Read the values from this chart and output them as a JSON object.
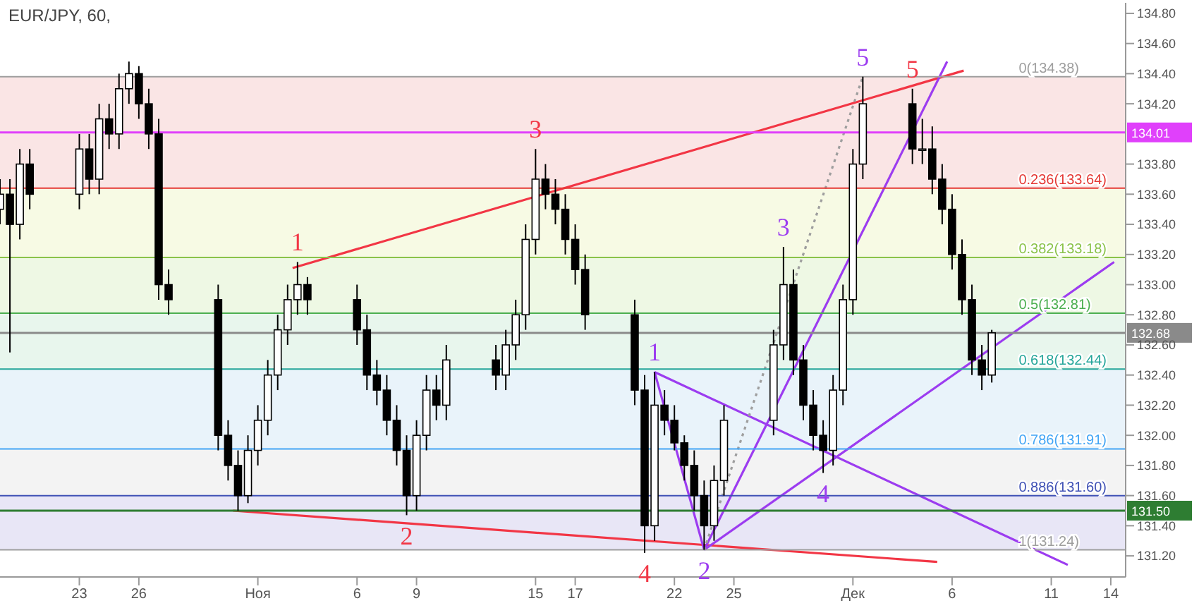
{
  "chart_data": {
    "type": "candlestick",
    "title": "EUR/JPY, 60,",
    "x": [
      "--10-19",
      "--10-19T12:00",
      "--10-20",
      "--10-20T12:00",
      "--10-23",
      "--10-23T12:00",
      "--10-24",
      "--10-24T12:00",
      "--10-25",
      "--10-25T12:00",
      "--10-26",
      "--10-26T12:00",
      "--10-27",
      "--10-27T12:00",
      "--10-30",
      "--10-30T12:00",
      "--10-31",
      "--10-31T12:00",
      "--11-01",
      "--11-01T12:00",
      "--11-02",
      "--11-02T12:00",
      "--11-03",
      "--11-03T12:00",
      "--11-06",
      "--11-06T12:00",
      "--11-07",
      "--11-07T12:00",
      "--11-08",
      "--11-08T12:00",
      "--11-09",
      "--11-09T12:00",
      "--11-10",
      "--11-10T12:00",
      "--11-13",
      "--11-13T12:00",
      "--11-14",
      "--11-14T12:00",
      "--11-15",
      "--11-15T12:00",
      "--11-16",
      "--11-16T12:00",
      "--11-17",
      "--11-17T12:00",
      "--11-20",
      "--11-20T12:00",
      "--11-21",
      "--11-21T12:00",
      "--11-22",
      "--11-22T12:00",
      "--11-23",
      "--11-23T12:00",
      "--11-24",
      "--11-24T12:00",
      "--11-27",
      "--11-27T12:00",
      "--11-28",
      "--11-28T12:00",
      "--11-29",
      "--11-29T12:00",
      "--11-30",
      "--11-30T12:00",
      "--12-01",
      "--12-01T12:00",
      "--12-04",
      "--12-04T12:00",
      "--12-05",
      "--12-05T12:00",
      "--12-06",
      "--12-06T12:00",
      "--12-07",
      "--12-07T12:00",
      "--12-08"
    ],
    "ohlc": [
      [
        133.5,
        133.7,
        133.4,
        133.6
      ],
      [
        133.6,
        133.7,
        132.55,
        133.4
      ],
      [
        133.4,
        133.9,
        133.3,
        133.8
      ],
      [
        133.8,
        133.9,
        133.5,
        133.6
      ],
      [
        133.6,
        134.0,
        133.5,
        133.9
      ],
      [
        133.9,
        134.0,
        133.6,
        133.7
      ],
      [
        133.7,
        134.2,
        133.6,
        134.1
      ],
      [
        134.1,
        134.2,
        133.9,
        134.0
      ],
      [
        134.0,
        134.4,
        133.9,
        134.3
      ],
      [
        134.3,
        134.48,
        134.2,
        134.4
      ],
      [
        134.4,
        134.45,
        134.1,
        134.2
      ],
      [
        134.2,
        134.3,
        133.9,
        134.0
      ],
      [
        134.0,
        134.1,
        132.9,
        133.0
      ],
      [
        133.0,
        133.1,
        132.8,
        132.9
      ],
      [
        132.9,
        133.0,
        131.9,
        132.0
      ],
      [
        132.0,
        132.1,
        131.7,
        131.8
      ],
      [
        131.8,
        131.9,
        131.5,
        131.6
      ],
      [
        131.6,
        132.0,
        131.55,
        131.9
      ],
      [
        131.9,
        132.2,
        131.8,
        132.1
      ],
      [
        132.1,
        132.5,
        132.0,
        132.4
      ],
      [
        132.4,
        132.8,
        132.3,
        132.7
      ],
      [
        132.7,
        133.0,
        132.6,
        132.9
      ],
      [
        132.9,
        133.15,
        132.8,
        133.0
      ],
      [
        133.0,
        133.05,
        132.8,
        132.9
      ],
      [
        132.9,
        133.0,
        132.6,
        132.7
      ],
      [
        132.7,
        132.8,
        132.3,
        132.4
      ],
      [
        132.4,
        132.5,
        132.2,
        132.3
      ],
      [
        132.3,
        132.4,
        132.0,
        132.1
      ],
      [
        132.1,
        132.2,
        131.8,
        131.9
      ],
      [
        131.9,
        132.0,
        131.47,
        131.6
      ],
      [
        131.6,
        132.1,
        131.5,
        132.0
      ],
      [
        132.0,
        132.4,
        131.9,
        132.3
      ],
      [
        132.3,
        132.4,
        132.1,
        132.2
      ],
      [
        132.2,
        132.6,
        132.1,
        132.5
      ],
      [
        132.5,
        132.6,
        132.3,
        132.4
      ],
      [
        132.4,
        132.7,
        132.3,
        132.6
      ],
      [
        132.6,
        132.9,
        132.5,
        132.8
      ],
      [
        132.8,
        133.4,
        132.7,
        133.3
      ],
      [
        133.3,
        133.9,
        133.2,
        133.7
      ],
      [
        133.7,
        133.8,
        133.5,
        133.6
      ],
      [
        133.6,
        133.7,
        133.4,
        133.5
      ],
      [
        133.5,
        133.6,
        133.2,
        133.3
      ],
      [
        133.3,
        133.4,
        133.0,
        133.1
      ],
      [
        133.1,
        133.2,
        132.7,
        132.8
      ],
      [
        132.8,
        132.9,
        132.2,
        132.3
      ],
      [
        132.3,
        132.4,
        131.22,
        131.4
      ],
      [
        131.4,
        132.42,
        131.3,
        132.2
      ],
      [
        132.2,
        132.3,
        132.0,
        132.1
      ],
      [
        132.1,
        132.2,
        131.9,
        131.95
      ],
      [
        131.95,
        132.0,
        131.7,
        131.8
      ],
      [
        131.8,
        131.9,
        131.5,
        131.6
      ],
      [
        131.6,
        131.7,
        131.24,
        131.4
      ],
      [
        131.4,
        131.8,
        131.3,
        131.7
      ],
      [
        131.7,
        132.2,
        131.6,
        132.1
      ],
      [
        132.1,
        132.7,
        132.0,
        132.6
      ],
      [
        132.6,
        133.25,
        132.5,
        133.0
      ],
      [
        133.0,
        133.1,
        132.4,
        132.5
      ],
      [
        132.5,
        132.6,
        132.1,
        132.2
      ],
      [
        132.2,
        132.3,
        131.9,
        132.0
      ],
      [
        132.0,
        132.1,
        131.75,
        131.9
      ],
      [
        131.9,
        132.4,
        131.8,
        132.3
      ],
      [
        132.3,
        133.0,
        132.2,
        132.9
      ],
      [
        132.9,
        133.9,
        132.8,
        133.8
      ],
      [
        133.8,
        134.38,
        133.7,
        134.2
      ],
      [
        134.2,
        134.3,
        133.8,
        133.9
      ],
      [
        133.9,
        134.1,
        133.8,
        133.9
      ],
      [
        133.9,
        134.05,
        133.6,
        133.7
      ],
      [
        133.7,
        133.8,
        133.4,
        133.5
      ],
      [
        133.5,
        133.6,
        133.1,
        133.2
      ],
      [
        133.2,
        133.3,
        132.8,
        132.9
      ],
      [
        132.9,
        133.0,
        132.4,
        132.5
      ],
      [
        132.5,
        132.6,
        132.3,
        132.4
      ],
      [
        132.4,
        132.7,
        132.35,
        132.68
      ]
    ],
    "series": [
      {
        "type": "line",
        "color": "#f23645",
        "x": [
          "--11-02T18:00",
          "--12-06T14:00"
        ],
        "values": [
          133.11,
          134.42
        ]
      },
      {
        "type": "line",
        "color": "#f23645",
        "x": [
          "--10-30T18:00",
          "--12-05T06:00"
        ],
        "values": [
          131.5,
          131.16
        ]
      },
      {
        "type": "line",
        "color": "#9c3cf0",
        "x": [
          "--11-23T12:00",
          "--12-05T18:00"
        ],
        "values": [
          131.24,
          134.48
        ]
      },
      {
        "type": "line",
        "color": "#9c3cf0",
        "x": [
          "--11-23T12:00",
          "--12-14T04:00"
        ],
        "values": [
          131.24,
          133.15
        ]
      },
      {
        "type": "line",
        "color": "#9c3cf0",
        "x": [
          "--11-21",
          "--11-23T12:00"
        ],
        "values": [
          132.42,
          131.24
        ]
      },
      {
        "type": "line",
        "color": "#9c3cf0",
        "x": [
          "--11-21",
          "--12-11T20:00"
        ],
        "values": [
          132.42,
          131.14
        ]
      },
      {
        "type": "line",
        "color": "#9e9e9e",
        "line_style": "dotted",
        "x": [
          "--11-23T12:00",
          "--12-01T12:00"
        ],
        "values": [
          131.24,
          134.38
        ]
      }
    ],
    "xlim": [
      "--10-19",
      "--12-14T18:00"
    ],
    "xticks": [
      {
        "value": "--10-23",
        "label": "23"
      },
      {
        "value": "--10-26",
        "label": "26"
      },
      {
        "value": "--11-01",
        "label": "Ноя"
      },
      {
        "value": "--11-06",
        "label": "6"
      },
      {
        "value": "--11-09",
        "label": "9"
      },
      {
        "value": "--11-15",
        "label": "15"
      },
      {
        "value": "--11-17",
        "label": "17"
      },
      {
        "value": "--11-22",
        "label": "22"
      },
      {
        "value": "--11-25",
        "label": "25"
      },
      {
        "value": "--12-01",
        "label": "Дек"
      },
      {
        "value": "--12-06",
        "label": "6"
      },
      {
        "value": "--12-11",
        "label": "11"
      },
      {
        "value": "--12-14",
        "label": "14"
      }
    ],
    "ylim": [
      131.06,
      134.87
    ],
    "yticks": [
      {
        "value": 131.2,
        "label": "131.20"
      },
      {
        "value": 131.4,
        "label": "131.40"
      },
      {
        "value": 131.6,
        "label": "131.60"
      },
      {
        "value": 131.8,
        "label": "131.80"
      },
      {
        "value": 132.0,
        "label": "132.00"
      },
      {
        "value": 132.2,
        "label": "132.20"
      },
      {
        "value": 132.4,
        "label": "132.40"
      },
      {
        "value": 132.6,
        "label": "132.60"
      },
      {
        "value": 132.8,
        "label": "132.80"
      },
      {
        "value": 133.0,
        "label": "133.00"
      },
      {
        "value": 133.2,
        "label": "133.20"
      },
      {
        "value": 133.4,
        "label": "133.40"
      },
      {
        "value": 133.6,
        "label": "133.60"
      },
      {
        "value": 133.8,
        "label": "133.80"
      },
      {
        "value": 134.2,
        "label": "134.20"
      },
      {
        "value": 134.4,
        "label": "134.40"
      },
      {
        "value": 134.6,
        "label": "134.60"
      },
      {
        "value": 134.8,
        "label": "134.80"
      }
    ],
    "bands": [
      {
        "axis": "y",
        "from": 133.64,
        "to": 134.38,
        "color": "#f5c6c6"
      },
      {
        "axis": "y",
        "from": 133.18,
        "to": 133.64,
        "color": "#eef3c4"
      },
      {
        "axis": "y",
        "from": 132.81,
        "to": 133.18,
        "color": "#d9efc4"
      },
      {
        "axis": "y",
        "from": 132.44,
        "to": 132.81,
        "color": "#cdebd8"
      },
      {
        "axis": "y",
        "from": 131.91,
        "to": 132.44,
        "color": "#cfe4f5"
      },
      {
        "axis": "y",
        "from": 131.6,
        "to": 131.91,
        "color": "#e4e4e4"
      },
      {
        "axis": "y",
        "from": 131.24,
        "to": 131.6,
        "color": "#cbc8ec"
      }
    ],
    "ref_lines": [
      {
        "axis": "y",
        "value": 134.38,
        "label": "0(134.38)",
        "color": "#9e9e9e"
      },
      {
        "axis": "y",
        "value": 133.64,
        "label": "0.236(133.64)",
        "color": "#e53935"
      },
      {
        "axis": "y",
        "value": 133.18,
        "label": "0.382(133.18)",
        "color": "#8bc34a"
      },
      {
        "axis": "y",
        "value": 132.81,
        "label": "0.5(132.81)",
        "color": "#4caf50"
      },
      {
        "axis": "y",
        "value": 132.44,
        "label": "0.618(132.44)",
        "color": "#26a69a"
      },
      {
        "axis": "y",
        "value": 131.91,
        "label": "0.786(131.91)",
        "color": "#42a5f5"
      },
      {
        "axis": "y",
        "value": 131.6,
        "label": "0.886(131.60)",
        "color": "#3f51b5"
      },
      {
        "axis": "y",
        "value": 131.24,
        "label": "1(131.24)",
        "color": "#9e9e9e"
      },
      {
        "axis": "y",
        "value": 134.01,
        "label": "134.01",
        "color": "#e040fb"
      },
      {
        "axis": "y",
        "value": 132.68,
        "label": "132.68",
        "color": "#8a8a8a"
      },
      {
        "axis": "y",
        "value": 131.5,
        "label": "131.50",
        "color": "#2e7d32"
      }
    ],
    "annotations": [
      {
        "text": "1",
        "x": "--11-03",
        "y": 133.15
      },
      {
        "text": "2",
        "x": "--11-08T12:00",
        "y": 131.47
      },
      {
        "text": "3",
        "x": "--11-15",
        "y": 133.9
      },
      {
        "text": "4",
        "x": "--11-20T12:00",
        "y": 131.22
      },
      {
        "text": "5",
        "x": "--12-04",
        "y": 134.3
      },
      {
        "text": "1",
        "x": "--11-21",
        "y": 132.42
      },
      {
        "text": "2",
        "x": "--11-23T12:00",
        "y": 131.24
      },
      {
        "text": "3",
        "x": "--11-27T12:00",
        "y": 133.25
      },
      {
        "text": "4",
        "x": "--11-29T12:00",
        "y": 131.75
      },
      {
        "text": "5",
        "x": "--12-01T12:00",
        "y": 134.38
      }
    ]
  }
}
